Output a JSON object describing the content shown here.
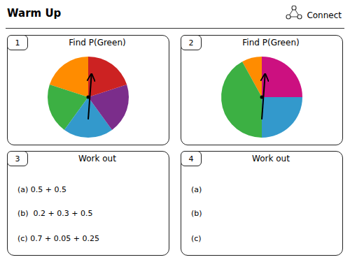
{
  "title": "Warm Up",
  "annotations": [
    "Connect"
  ],
  "chart_data": [
    {
      "type": "pie",
      "title": "Find P(Green)",
      "annotations": [
        "1"
      ],
      "values": [
        0.2,
        0.2,
        0.2,
        0.2,
        0.2
      ],
      "colors": [
        "#ff8c00",
        "#3cb043",
        "#3399cc",
        "#7b2d8b",
        "#cc2222"
      ]
    },
    {
      "type": "pie",
      "title": "Find P(Green)",
      "annotations": [
        "2"
      ],
      "values": [
        0.08,
        0.42,
        0.25,
        0.25
      ],
      "colors": [
        "#ff8c00",
        "#3cb043",
        "#3399cc",
        "#cc1080"
      ]
    },
    {
      "type": "text",
      "title": "Work out",
      "annotations": [
        "3",
        "(a) 0.5 + 0.5",
        "(b)  0.2 + 0.3 + 0.5",
        "(c) 0.7 + 0.05 + 0.25"
      ]
    },
    {
      "type": "text",
      "title": "Work out",
      "annotations": [
        "4",
        "(a)",
        "(b)",
        "(c)"
      ]
    }
  ]
}
